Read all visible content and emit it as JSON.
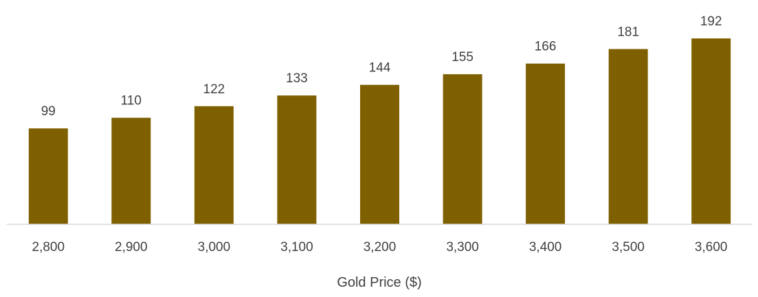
{
  "chart_data": {
    "type": "bar",
    "title": "",
    "xlabel": "Gold Price ($)",
    "ylabel": "",
    "categories": [
      "2,800",
      "2,900",
      "3,000",
      "3,100",
      "3,200",
      "3,300",
      "3,400",
      "3,500",
      "3,600"
    ],
    "values": [
      99,
      110,
      122,
      133,
      144,
      155,
      166,
      181,
      192
    ],
    "ylim": [
      0,
      200
    ],
    "grid": false,
    "legend": "none",
    "data_labels": true,
    "colors": {
      "bar": "#7f6000",
      "axis": "#d9d9d9",
      "text": "#3f3f3f"
    }
  }
}
